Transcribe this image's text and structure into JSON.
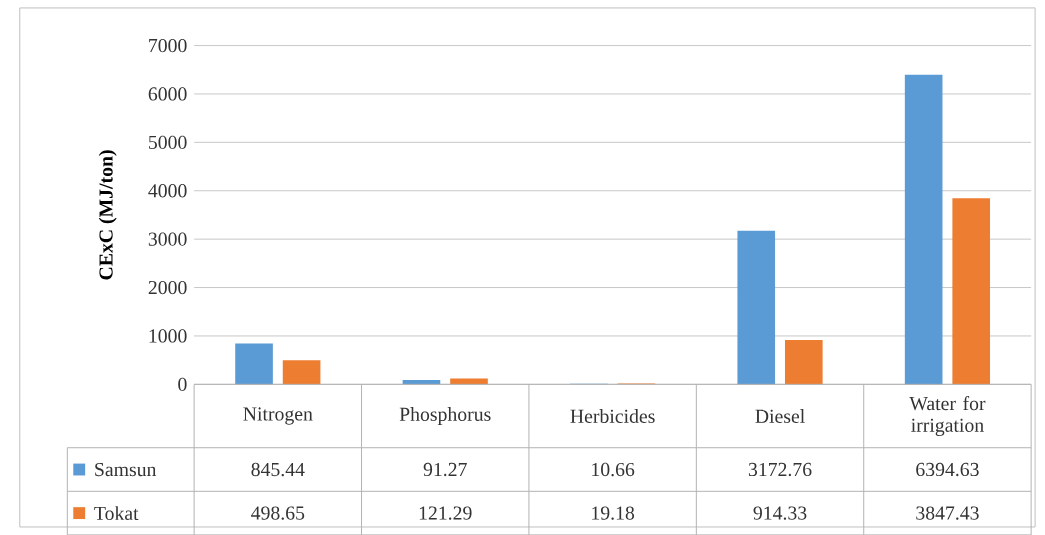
{
  "chart_data": {
    "type": "bar",
    "ylabel": "CExC (MJ/ton)",
    "categories": [
      "Nitrogen",
      "Phosphorus",
      "Herbicides",
      "Diesel",
      "Water for irrigation"
    ],
    "series": [
      {
        "name": "Samsun",
        "color": "#5b9bd5",
        "values": [
          845.44,
          91.27,
          10.66,
          3172.76,
          6394.63
        ],
        "value_labels": [
          "845.44",
          "91.27",
          "10.66",
          "3172.76",
          "6394.63"
        ]
      },
      {
        "name": "Tokat",
        "color": "#ed7d31",
        "values": [
          498.65,
          121.29,
          19.18,
          914.33,
          3847.43
        ],
        "value_labels": [
          "498.65",
          "121.29",
          "19.18",
          "914.33",
          "3847.43"
        ]
      }
    ],
    "ylim": [
      0,
      7000
    ],
    "yticks": [
      0,
      1000,
      2000,
      3000,
      4000,
      5000,
      6000,
      7000
    ],
    "grid": "y",
    "legend": "bottom"
  }
}
